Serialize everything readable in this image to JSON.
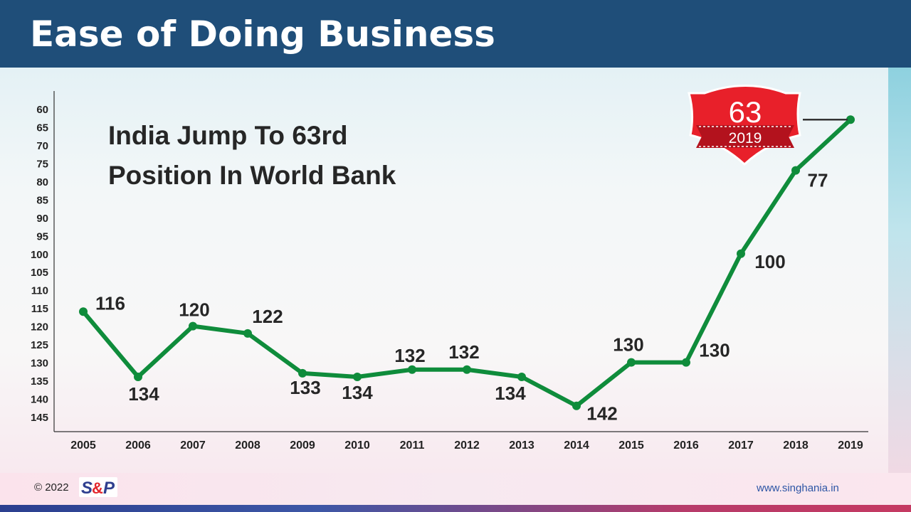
{
  "slide": {
    "title": "Ease of Doing Business",
    "copyright": "© 2022",
    "logo_text": "S&P",
    "website": "www.singhania.in"
  },
  "colors": {
    "header": "#1f4e79",
    "line": "#0f8c3b",
    "badge": "#e8202a"
  },
  "badge": {
    "rank": "63",
    "year": "2019"
  },
  "chart_data": {
    "type": "line",
    "title": "India Jump To 63rd Position In World Bank",
    "xlabel": "",
    "ylabel": "",
    "y_inverted": true,
    "ylim": [
      60,
      145
    ],
    "yticks": [
      60,
      65,
      70,
      75,
      80,
      85,
      90,
      95,
      100,
      105,
      110,
      115,
      120,
      125,
      130,
      135,
      140,
      145
    ],
    "categories": [
      "2005",
      "2006",
      "2007",
      "2008",
      "2009",
      "2010",
      "2011",
      "2012",
      "2013",
      "2014",
      "2015",
      "2016",
      "2017",
      "2018",
      "2019"
    ],
    "values": [
      116,
      134,
      120,
      122,
      133,
      134,
      132,
      132,
      134,
      142,
      130,
      130,
      100,
      77,
      63
    ],
    "grid": false,
    "legend": "none"
  }
}
